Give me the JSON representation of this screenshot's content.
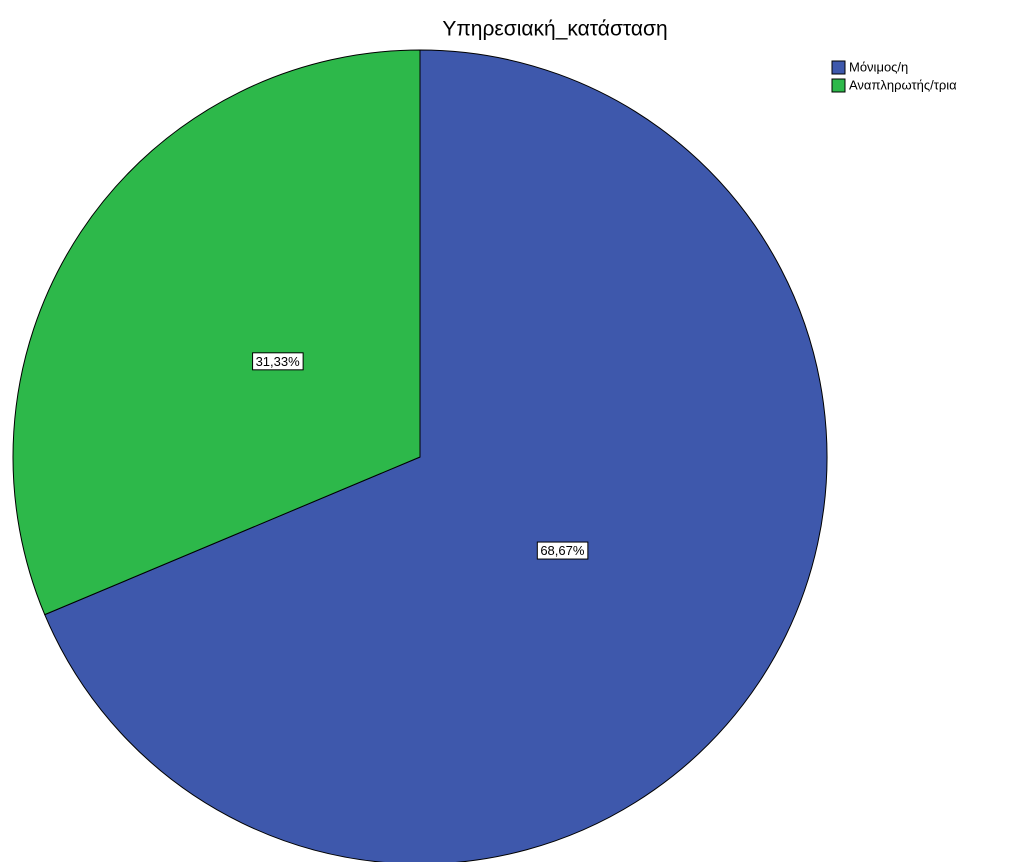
{
  "chart_data": {
    "type": "pie",
    "title": "Υπηρεσιακή_κατάσταση",
    "categories": [
      "Μόνιμος/η",
      "Αναπληρωτής/τρια"
    ],
    "values": [
      68.67,
      31.33
    ],
    "value_labels": [
      "68,67%",
      "31,33%"
    ],
    "colors": [
      "#3e58ac",
      "#2db84a"
    ],
    "legend": "top-right"
  }
}
